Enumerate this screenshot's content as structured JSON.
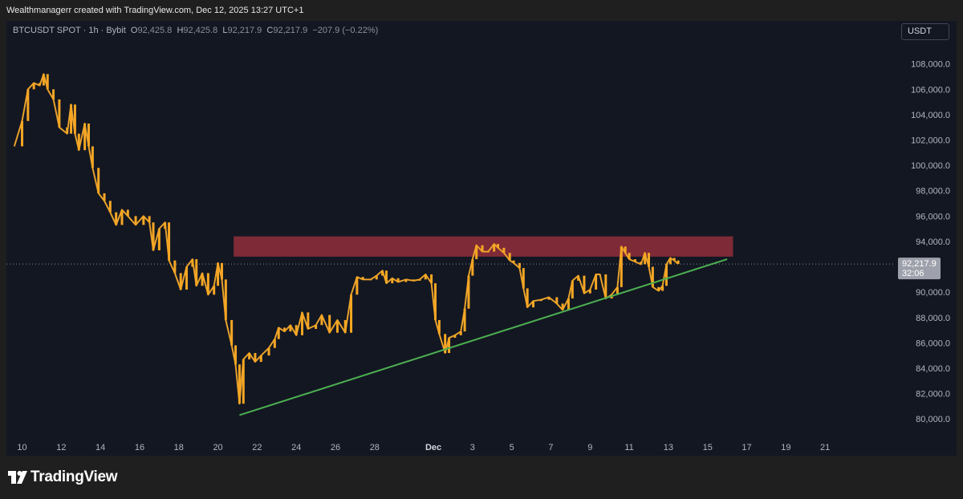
{
  "header": {
    "attribution": "Wealthmanagerr created with TradingView.com, Dec 12, 2025 13:27 UTC+1"
  },
  "symbol_bar": {
    "symbol": "BTCUSDT SPOT · 1h · Bybit",
    "o_label": "O",
    "o_value": "92,425.8",
    "h_label": "H",
    "h_value": "92,425.8",
    "l_label": "L",
    "l_value": "92,217.9",
    "c_label": "C",
    "c_value": "92,217.9",
    "change": "−207.9 (−0.22%)"
  },
  "currency_button": "USDT",
  "price_label": {
    "value": "92,217.9",
    "countdown": "32:06"
  },
  "footer": {
    "logo_text": "TradingView"
  },
  "colors": {
    "background": "#131722",
    "candle": "#f5a623",
    "wick": "#9598a1",
    "resistance_zone": "#a83240",
    "trendline": "#4caf50",
    "price_label_bg": "#9ea1ab"
  },
  "chart_data": {
    "type": "line",
    "series_name": "BTCUSDT",
    "y_axis": {
      "ylim": [
        79000,
        109500
      ],
      "ticks": [
        "108,000.0",
        "106,000.0",
        "104,000.0",
        "102,000.0",
        "100,000.0",
        "98,000.0",
        "96,000.0",
        "94,000.0",
        "92,217.9",
        "90,000.0",
        "88,000.0",
        "86,000.0",
        "84,000.0",
        "82,000.0",
        "80,000.0"
      ]
    },
    "x_axis": {
      "tick_labels": [
        "10",
        "12",
        "14",
        "16",
        "18",
        "20",
        "22",
        "24",
        "26",
        "28",
        "Dec",
        "3",
        "5",
        "7",
        "9",
        "11",
        "13",
        "15",
        "17",
        "19",
        "21"
      ]
    },
    "grid": false,
    "current_price": 92217.9,
    "price": [
      [
        9.6,
        101500
      ],
      [
        10.0,
        103500
      ],
      [
        10.3,
        106000
      ],
      [
        10.6,
        106500
      ],
      [
        10.9,
        106300
      ],
      [
        11.1,
        107200
      ],
      [
        11.3,
        106000
      ],
      [
        11.6,
        105200
      ],
      [
        11.9,
        103000
      ],
      [
        12.3,
        102500
      ],
      [
        12.5,
        104800
      ],
      [
        12.7,
        102500
      ],
      [
        12.9,
        101200
      ],
      [
        13.2,
        103300
      ],
      [
        13.4,
        101500
      ],
      [
        13.6,
        99800
      ],
      [
        13.9,
        97800
      ],
      [
        14.2,
        97200
      ],
      [
        14.5,
        96300
      ],
      [
        14.8,
        95300
      ],
      [
        15.1,
        96500
      ],
      [
        15.4,
        96000
      ],
      [
        15.8,
        95300
      ],
      [
        16.2,
        96000
      ],
      [
        16.5,
        95500
      ],
      [
        16.7,
        93300
      ],
      [
        17.0,
        95000
      ],
      [
        17.3,
        95500
      ],
      [
        17.5,
        92500
      ],
      [
        17.8,
        91500
      ],
      [
        18.1,
        90200
      ],
      [
        18.4,
        92000
      ],
      [
        18.7,
        92600
      ],
      [
        18.9,
        90500
      ],
      [
        19.2,
        91500
      ],
      [
        19.5,
        89800
      ],
      [
        19.8,
        90500
      ],
      [
        20.0,
        92300
      ],
      [
        20.2,
        91000
      ],
      [
        20.4,
        87800
      ],
      [
        20.7,
        85800
      ],
      [
        20.9,
        84300
      ],
      [
        21.1,
        81200
      ],
      [
        21.3,
        84700
      ],
      [
        21.6,
        85200
      ],
      [
        21.9,
        84500
      ],
      [
        22.2,
        85000
      ],
      [
        22.6,
        85600
      ],
      [
        22.9,
        86300
      ],
      [
        23.1,
        87200
      ],
      [
        23.4,
        86900
      ],
      [
        23.7,
        87400
      ],
      [
        24.0,
        86600
      ],
      [
        24.3,
        88400
      ],
      [
        24.6,
        87100
      ],
      [
        25.0,
        87400
      ],
      [
        25.3,
        88200
      ],
      [
        25.7,
        86800
      ],
      [
        26.1,
        87800
      ],
      [
        26.5,
        86800
      ],
      [
        26.8,
        89800
      ],
      [
        27.1,
        91200
      ],
      [
        27.4,
        91000
      ],
      [
        27.8,
        91000
      ],
      [
        28.1,
        91300
      ],
      [
        28.4,
        91700
      ],
      [
        28.6,
        90700
      ],
      [
        28.9,
        91100
      ],
      [
        29.2,
        90800
      ],
      [
        29.6,
        91000
      ],
      [
        30.0,
        90900
      ],
      [
        30.3,
        91000
      ],
      [
        30.6,
        91400
      ],
      [
        30.9,
        90700
      ],
      [
        31.1,
        87800
      ],
      [
        31.3,
        86700
      ],
      [
        31.6,
        85200
      ],
      [
        31.8,
        86400
      ],
      [
        32.1,
        86600
      ],
      [
        32.4,
        86900
      ],
      [
        32.6,
        88700
      ],
      [
        32.8,
        91300
      ],
      [
        33.0,
        92600
      ],
      [
        33.2,
        93700
      ],
      [
        33.5,
        93200
      ],
      [
        33.8,
        93200
      ],
      [
        34.1,
        93800
      ],
      [
        34.3,
        93500
      ],
      [
        34.6,
        93100
      ],
      [
        34.9,
        92500
      ],
      [
        35.1,
        92300
      ],
      [
        35.4,
        91900
      ],
      [
        35.6,
        90300
      ],
      [
        35.8,
        88800
      ],
      [
        36.1,
        89300
      ],
      [
        36.5,
        89400
      ],
      [
        36.9,
        89600
      ],
      [
        37.3,
        89100
      ],
      [
        37.6,
        88600
      ],
      [
        37.9,
        89500
      ],
      [
        38.1,
        90900
      ],
      [
        38.4,
        91300
      ],
      [
        38.7,
        89900
      ],
      [
        39.0,
        90200
      ],
      [
        39.3,
        91400
      ],
      [
        39.5,
        91400
      ],
      [
        39.8,
        89500
      ],
      [
        40.1,
        89800
      ],
      [
        40.4,
        90400
      ],
      [
        40.6,
        93600
      ],
      [
        40.8,
        93100
      ],
      [
        41.0,
        92600
      ],
      [
        41.3,
        92400
      ],
      [
        41.6,
        92200
      ],
      [
        41.8,
        93100
      ],
      [
        42.0,
        92000
      ],
      [
        42.2,
        90400
      ],
      [
        42.5,
        90100
      ],
      [
        42.7,
        90500
      ],
      [
        42.9,
        92200
      ],
      [
        43.1,
        92700
      ],
      [
        43.3,
        92500
      ],
      [
        43.5,
        92217.9
      ]
    ],
    "resistance_zone": {
      "y_range": [
        92800,
        94400
      ],
      "x_range": [
        20.8,
        46.3
      ],
      "color": "#a83240"
    },
    "trendline": {
      "from": [
        21.1,
        80300
      ],
      "to": [
        46.0,
        92600
      ],
      "color": "#4caf50"
    }
  }
}
